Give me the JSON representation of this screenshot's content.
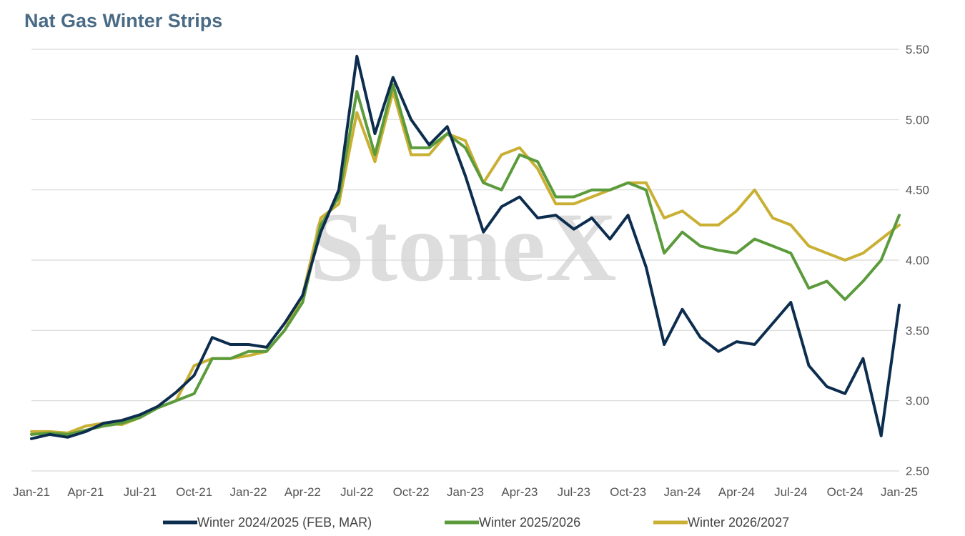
{
  "watermark": "StoneX",
  "chart_data": {
    "type": "line",
    "title": "Nat Gas Winter Strips",
    "xlabel": "",
    "ylabel": "",
    "ylim": [
      2.5,
      5.5
    ],
    "yticks": [
      "5.50",
      "5.00",
      "4.50",
      "4.00",
      "3.50",
      "3.00",
      "2.50"
    ],
    "y_axis_position": "right",
    "xticks": [
      "Jan-21",
      "Apr-21",
      "Jul-21",
      "Oct-21",
      "Jan-22",
      "Apr-22",
      "Jul-22",
      "Oct-22",
      "Jan-23",
      "Apr-23",
      "Jul-23",
      "Oct-23",
      "Jan-24",
      "Apr-24",
      "Jul-24",
      "Oct-24",
      "Jan-25"
    ],
    "grid": "horizontal",
    "legend_position": "bottom",
    "x_range": [
      "Jan-21",
      "Jan-25"
    ],
    "x": [
      "Jan-21",
      "Feb-21",
      "Mar-21",
      "Apr-21",
      "May-21",
      "Jun-21",
      "Jul-21",
      "Aug-21",
      "Sep-21",
      "Oct-21",
      "Nov-21",
      "Dec-21",
      "Jan-22",
      "Feb-22",
      "Mar-22",
      "Apr-22",
      "May-22",
      "Jun-22",
      "Jul-22",
      "Aug-22",
      "Sep-22",
      "Oct-22",
      "Nov-22",
      "Dec-22",
      "Jan-23",
      "Feb-23",
      "Mar-23",
      "Apr-23",
      "May-23",
      "Jun-23",
      "Jul-23",
      "Aug-23",
      "Sep-23",
      "Oct-23",
      "Nov-23",
      "Dec-23",
      "Jan-24",
      "Feb-24",
      "Mar-24",
      "Apr-24",
      "May-24",
      "Jun-24",
      "Jul-24",
      "Aug-24",
      "Sep-24",
      "Oct-24",
      "Nov-24",
      "Dec-24",
      "Jan-25"
    ],
    "series": [
      {
        "name": "Winter 2024/2025 (FEB, MAR)",
        "color": "#0d2d4f",
        "values": [
          2.73,
          2.76,
          2.74,
          2.78,
          2.84,
          2.86,
          2.9,
          2.96,
          3.06,
          3.18,
          3.45,
          3.4,
          3.4,
          3.38,
          3.55,
          3.75,
          4.2,
          4.5,
          5.45,
          4.9,
          5.3,
          5.0,
          4.82,
          4.95,
          4.6,
          4.2,
          4.38,
          4.45,
          4.3,
          4.32,
          4.22,
          4.3,
          4.15,
          4.32,
          3.95,
          3.4,
          3.65,
          3.45,
          3.35,
          3.42,
          3.4,
          3.55,
          3.7,
          3.25,
          3.1,
          3.05,
          3.3,
          2.75,
          3.68
        ]
      },
      {
        "name": "Winter 2025/2026",
        "color": "#5b9b3c",
        "values": [
          2.76,
          2.77,
          2.76,
          2.79,
          2.82,
          2.84,
          2.88,
          2.95,
          3.0,
          3.05,
          3.3,
          3.3,
          3.35,
          3.35,
          3.5,
          3.7,
          4.25,
          4.45,
          5.2,
          4.75,
          5.25,
          4.8,
          4.8,
          4.9,
          4.8,
          4.55,
          4.5,
          4.75,
          4.7,
          4.45,
          4.45,
          4.5,
          4.5,
          4.55,
          4.5,
          4.05,
          4.2,
          4.1,
          4.07,
          4.05,
          4.15,
          4.1,
          4.05,
          3.8,
          3.85,
          3.72,
          3.85,
          4.0,
          4.32
        ]
      },
      {
        "name": "Winter 2026/2027",
        "color": "#c9b034",
        "values": [
          2.78,
          2.78,
          2.77,
          2.82,
          2.84,
          2.83,
          2.88,
          2.95,
          3.0,
          3.25,
          3.3,
          3.3,
          3.32,
          3.35,
          3.5,
          3.75,
          4.3,
          4.4,
          5.05,
          4.7,
          5.2,
          4.75,
          4.75,
          4.9,
          4.85,
          4.55,
          4.75,
          4.8,
          4.65,
          4.4,
          4.4,
          4.45,
          4.5,
          4.55,
          4.55,
          4.3,
          4.35,
          4.25,
          4.25,
          4.35,
          4.5,
          4.3,
          4.25,
          4.1,
          4.05,
          4.0,
          4.05,
          4.15,
          4.25
        ]
      }
    ]
  }
}
